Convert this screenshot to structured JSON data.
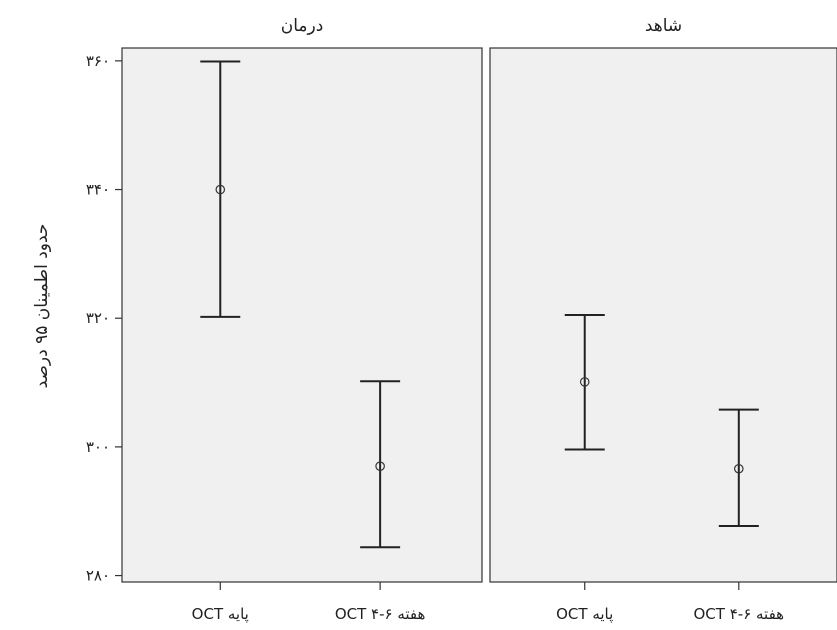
{
  "chart_data": {
    "type": "errorbar",
    "ylabel": "حدود اطمینان ۹۵ درصد",
    "ylim": [
      279,
      362
    ],
    "yticks": [
      280,
      300,
      320,
      340,
      360
    ],
    "ytick_labels": [
      "۲۸۰",
      "۳۰۰",
      "۳۲۰",
      "۳۴۰",
      "۳۶۰"
    ],
    "categories": [
      "OCT پایه",
      "OCT هفته ۶-۴"
    ],
    "panels": [
      {
        "title": "درمان",
        "points": [
          {
            "category": "OCT پایه",
            "mean": 340,
            "lower": 320.2,
            "upper": 359.9
          },
          {
            "category": "OCT هفته ۶-۴",
            "mean": 297,
            "lower": 284.4,
            "upper": 310.2
          }
        ]
      },
      {
        "title": "شاهد",
        "points": [
          {
            "category": "OCT پایه",
            "mean": 310.1,
            "lower": 299.6,
            "upper": 320.5
          },
          {
            "category": "OCT هفته ۶-۴",
            "mean": 296.6,
            "lower": 287.7,
            "upper": 305.8
          }
        ]
      }
    ],
    "grid": false,
    "legend": "none"
  }
}
